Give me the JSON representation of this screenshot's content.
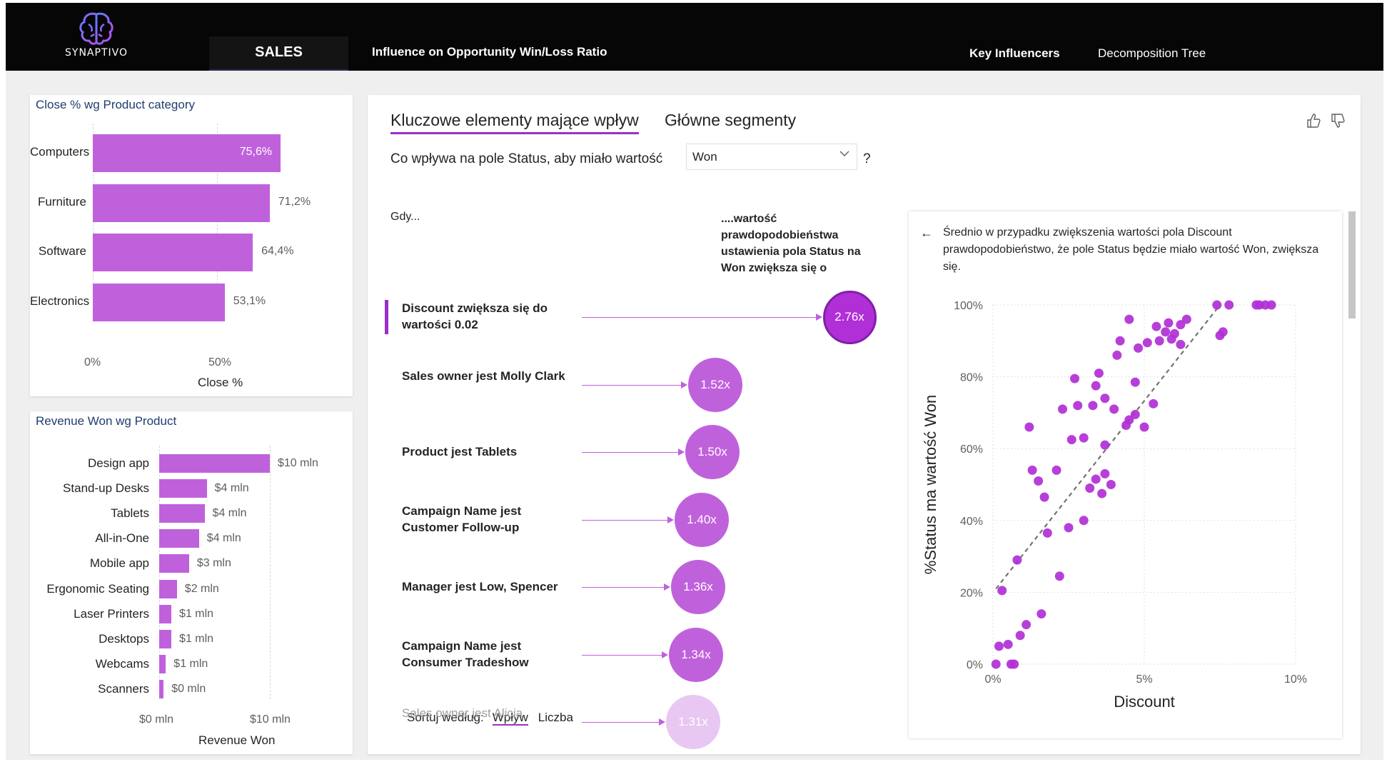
{
  "header": {
    "logo_text": "SYNAPTIVO",
    "nav_sales": "SALES",
    "nav_influence": "Influence on Opportunity Win/Loss Ratio",
    "nav_key_influencers": "Key Influencers",
    "nav_decomposition": "Decomposition Tree"
  },
  "colors": {
    "bar": "#c061dc",
    "accent": "#9b2fc9",
    "header_bg": "#060606"
  },
  "close_chart": {
    "title": "Close % wg Product category",
    "xlabel": "Close %",
    "ticks": [
      "0%",
      "50%"
    ],
    "rows": [
      {
        "label": "Computers",
        "value": 75.6,
        "text": "75,6%"
      },
      {
        "label": "Furniture",
        "value": 71.2,
        "text": "71,2%"
      },
      {
        "label": "Software",
        "value": 64.4,
        "text": "64,4%"
      },
      {
        "label": "Electronics",
        "value": 53.1,
        "text": "53,1%"
      }
    ]
  },
  "revenue_chart": {
    "title": "Revenue Won wg Product",
    "xlabel": "Revenue Won",
    "ticks": [
      "$0 mln",
      "$10 mln"
    ],
    "rows": [
      {
        "label": "Design app",
        "value": 10.0,
        "text": "$10 mln"
      },
      {
        "label": "Stand-up Desks",
        "value": 4.3,
        "text": "$4 mln"
      },
      {
        "label": "Tablets",
        "value": 4.1,
        "text": "$4 mln"
      },
      {
        "label": "All-in-One",
        "value": 3.6,
        "text": "$4 mln"
      },
      {
        "label": "Mobile app",
        "value": 2.7,
        "text": "$3 mln"
      },
      {
        "label": "Ergonomic Seating",
        "value": 1.6,
        "text": "$2 mln"
      },
      {
        "label": "Laser Printers",
        "value": 1.1,
        "text": "$1 mln"
      },
      {
        "label": "Desktops",
        "value": 1.1,
        "text": "$1 mln"
      },
      {
        "label": "Webcams",
        "value": 0.6,
        "text": "$1 mln"
      },
      {
        "label": "Scanners",
        "value": 0.4,
        "text": "$0 mln"
      }
    ]
  },
  "key_influencers": {
    "tab_active": "Kluczowe elementy mające wpływ",
    "tab_other": "Główne segmenty",
    "question_prefix": "Co wpływa na pole Status, aby miało wartość",
    "dropdown_value": "Won",
    "question_suffix": "?",
    "col_when": "Gdy...",
    "col_likelihood": "....wartość prawdopodobieństwa ustawienia pola Status na Won zwiększa się o",
    "items": [
      {
        "label": "Discount zwiększa się do wartości 0.02",
        "factor": "2.76x",
        "value": 2.76
      },
      {
        "label": "Sales owner jest Molly Clark",
        "factor": "1.52x",
        "value": 1.52
      },
      {
        "label": "Product jest Tablets",
        "factor": "1.50x",
        "value": 1.5
      },
      {
        "label": "Campaign Name jest Customer Follow-up",
        "factor": "1.40x",
        "value": 1.4
      },
      {
        "label": "Manager jest Low, Spencer",
        "factor": "1.36x",
        "value": 1.36
      },
      {
        "label": "Campaign Name jest Consumer Tradeshow",
        "factor": "1.34x",
        "value": 1.34
      },
      {
        "label": "Sales owner jest Alicia",
        "factor": "1.31x",
        "value": 1.31
      }
    ],
    "sort_label": "Sortuj według:",
    "sort_active": "Wpływ",
    "sort_other": "Liczba"
  },
  "detail": {
    "text": "Średnio w przypadku zwiększenia wartości pola Discount prawdopodobieństwo, że pole Status będzie miało wartość Won, zwiększa się."
  },
  "chart_data": {
    "type": "scatter",
    "xlabel": "Discount",
    "ylabel": "%Status ma wartość Won",
    "xlim": [
      0,
      10
    ],
    "ylim": [
      0,
      100
    ],
    "xticks": [
      "0%",
      "5%",
      "10%"
    ],
    "yticks": [
      "0%",
      "20%",
      "40%",
      "60%",
      "80%",
      "100%"
    ],
    "trend": [
      [
        0.1,
        21
      ],
      [
        7.5,
        100
      ]
    ],
    "points": [
      [
        0.1,
        0
      ],
      [
        0.2,
        5
      ],
      [
        0.5,
        5.5
      ],
      [
        0.6,
        0
      ],
      [
        0.7,
        0
      ],
      [
        0.3,
        20.5
      ],
      [
        0.8,
        29
      ],
      [
        0.9,
        8
      ],
      [
        1.1,
        11
      ],
      [
        1.6,
        14
      ],
      [
        1.2,
        66
      ],
      [
        1.3,
        54
      ],
      [
        1.5,
        51
      ],
      [
        1.7,
        46.5
      ],
      [
        1.8,
        36.5
      ],
      [
        2.1,
        54
      ],
      [
        2.2,
        24.5
      ],
      [
        2.3,
        71
      ],
      [
        2.6,
        62.5
      ],
      [
        2.7,
        79.5
      ],
      [
        2.8,
        72
      ],
      [
        2.5,
        38
      ],
      [
        3.0,
        40
      ],
      [
        3.0,
        63
      ],
      [
        3.2,
        49
      ],
      [
        3.3,
        72
      ],
      [
        3.4,
        51.5
      ],
      [
        3.6,
        47.5
      ],
      [
        3.7,
        53
      ],
      [
        3.4,
        77.5
      ],
      [
        3.5,
        81
      ],
      [
        3.7,
        74
      ],
      [
        3.7,
        61
      ],
      [
        3.9,
        50
      ],
      [
        4.0,
        71
      ],
      [
        4.1,
        86
      ],
      [
        4.2,
        90
      ],
      [
        4.4,
        66.5
      ],
      [
        4.5,
        96
      ],
      [
        4.5,
        68
      ],
      [
        4.7,
        69.5
      ],
      [
        4.7,
        78.5
      ],
      [
        4.8,
        88
      ],
      [
        5.0,
        66
      ],
      [
        5.1,
        89.5
      ],
      [
        5.3,
        72.5
      ],
      [
        5.4,
        94
      ],
      [
        5.5,
        90
      ],
      [
        5.7,
        92.5
      ],
      [
        5.8,
        95
      ],
      [
        5.9,
        90.5
      ],
      [
        6.0,
        92
      ],
      [
        6.2,
        94.5
      ],
      [
        6.2,
        89
      ],
      [
        6.4,
        96
      ],
      [
        7.4,
        100
      ],
      [
        7.5,
        91.5
      ],
      [
        7.6,
        92.5
      ],
      [
        7.8,
        100
      ],
      [
        8.7,
        100
      ],
      [
        8.8,
        100
      ],
      [
        9.0,
        100
      ],
      [
        9.2,
        100
      ]
    ]
  }
}
